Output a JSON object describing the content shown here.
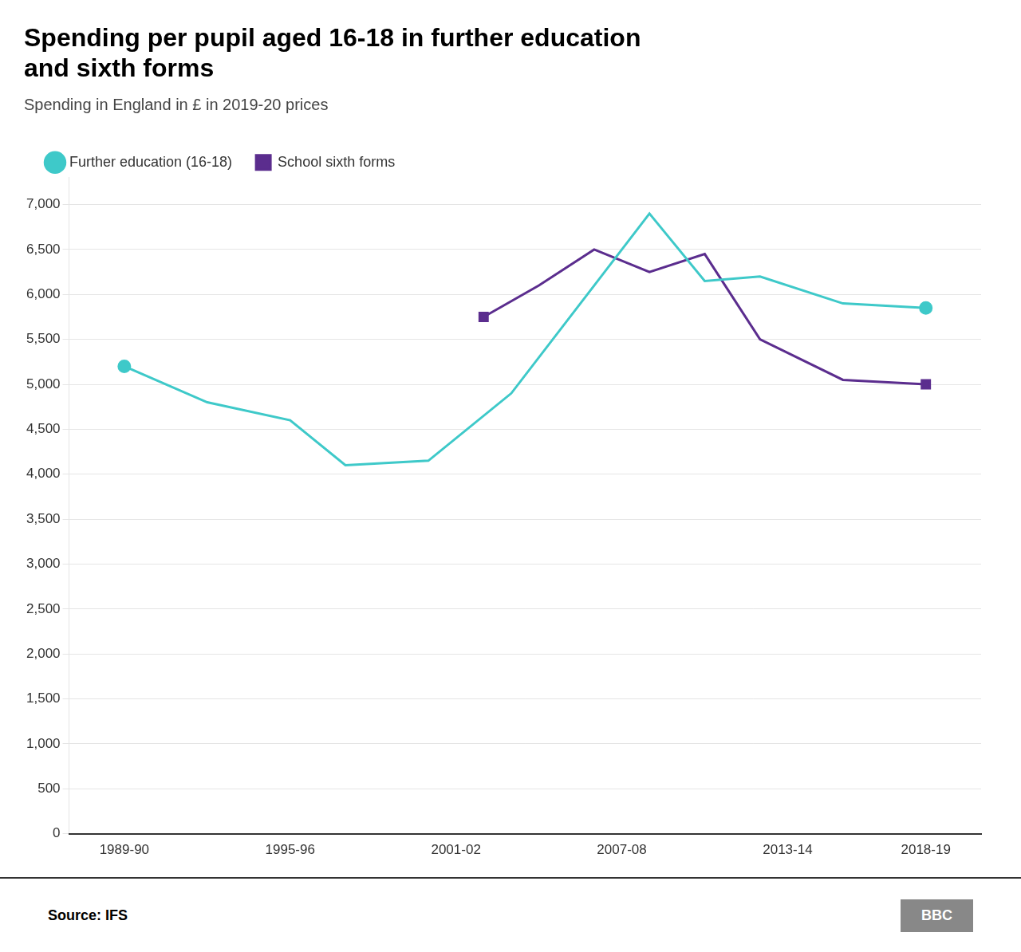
{
  "chart_data": {
    "type": "line",
    "title": "Spending per pupil aged 16-18 in further education\nand sixth forms",
    "subtitle": "Spending in England in £ in 2019-20 prices",
    "source": "Source: IFS",
    "logo": "BBC",
    "series": [
      {
        "name": "Further education (16-18)",
        "color": "#3ec9c9",
        "marker": "circle",
        "x": [
          1990,
          1993,
          1996,
          1998,
          2001,
          2004,
          2007,
          2009,
          2011,
          2013,
          2016,
          2019
        ],
        "values": [
          5200,
          4800,
          4600,
          4100,
          4150,
          4900,
          6100,
          6900,
          6150,
          6200,
          5900,
          5850
        ]
      },
      {
        "name": "School sixth forms",
        "color": "#5b2d8e",
        "marker": "square",
        "x": [
          2003,
          2005,
          2007,
          2009,
          2011,
          2013,
          2016,
          2019
        ],
        "values": [
          5750,
          6100,
          6500,
          6250,
          6450,
          5500,
          5050,
          5000
        ]
      }
    ],
    "xlim": [
      1988,
      2021
    ],
    "xticks": [
      {
        "value": 1990,
        "label": "1989-90"
      },
      {
        "value": 1996,
        "label": "1995-96"
      },
      {
        "value": 2002,
        "label": "2001-02"
      },
      {
        "value": 2008,
        "label": "2007-08"
      },
      {
        "value": 2014,
        "label": "2013-14"
      },
      {
        "value": 2019,
        "label": "2018-19"
      }
    ],
    "ylim": [
      0,
      7300
    ],
    "yticks": [
      0,
      500,
      {
        "value": 1000,
        "label": "1,000"
      },
      {
        "value": 1500,
        "label": "1,500"
      },
      {
        "value": 2000,
        "label": "2,000"
      },
      {
        "value": 2500,
        "label": "2,500"
      },
      {
        "value": 3000,
        "label": "3,000"
      },
      {
        "value": 3500,
        "label": "3,500"
      },
      {
        "value": 4000,
        "label": "4,000"
      },
      {
        "value": 4500,
        "label": "4,500"
      },
      {
        "value": 5000,
        "label": "5,000"
      },
      {
        "value": 5500,
        "label": "5,500"
      },
      {
        "value": 6000,
        "label": "6,000"
      },
      {
        "value": 6500,
        "label": "6,500"
      },
      {
        "value": 7000,
        "label": "7,000"
      }
    ],
    "grid": "y",
    "legend": "top"
  }
}
